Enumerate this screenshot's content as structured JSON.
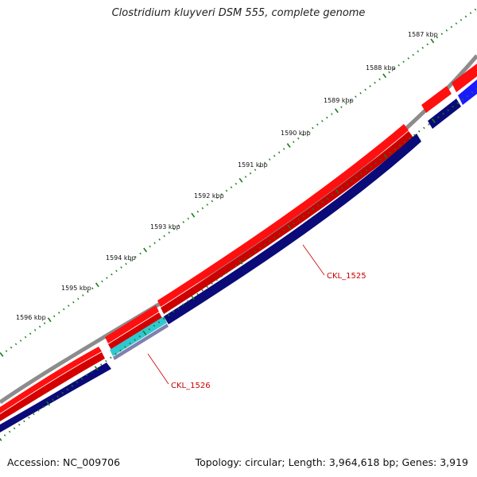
{
  "title": "Clostridium kluyveri DSM 555, complete genome",
  "accession": "Accession: NC_009706",
  "summary": "Topology: circular; Length: 3,964,618 bp; Genes: 3,919",
  "colors": {
    "backbone": "#8c8c8c",
    "forward_cds": "#ff1010",
    "reverse_cds": "#0a0a78",
    "blue_gene": "#1a1aff",
    "cyan_gene": "#30c8d0",
    "tick": "#1a7a1a",
    "callout": "#cc0000"
  },
  "ticks": [
    {
      "label": "1587 kbp"
    },
    {
      "label": "1588 kbp"
    },
    {
      "label": "1589 kbp"
    },
    {
      "label": "1590 kbp"
    },
    {
      "label": "1591 kbp"
    },
    {
      "label": "1592 kbp"
    },
    {
      "label": "1593 kbp"
    },
    {
      "label": "1594 kbp"
    },
    {
      "label": "1595 kbp"
    },
    {
      "label": "1596 kbp"
    }
  ],
  "genes": [
    {
      "label": "CKL_1525"
    },
    {
      "label": "CKL_1526"
    }
  ]
}
